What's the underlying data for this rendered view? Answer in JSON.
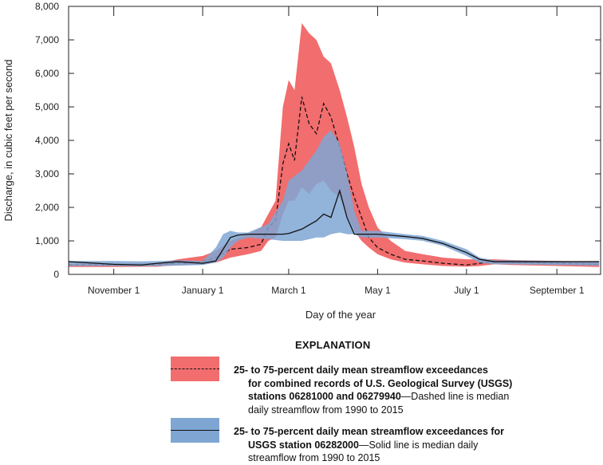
{
  "chart_data": {
    "type": "area",
    "xlabel": "Day of the year",
    "ylabel": "Discharge, in cubic feet per second",
    "ylim": [
      0,
      8000
    ],
    "xlim": [
      "10-01",
      "09-30"
    ],
    "yticks": [
      "0",
      "1,000",
      "2,000",
      "3,000",
      "4,000",
      "5,000",
      "6,000",
      "7,000",
      "8,000"
    ],
    "xticks": [
      {
        "date": "11-01",
        "label": "November 1"
      },
      {
        "date": "01-01",
        "label": "January 1"
      },
      {
        "date": "03-01",
        "label": "March 1"
      },
      {
        "date": "05-01",
        "label": "May 1"
      },
      {
        "date": "07-01",
        "label": "July 1"
      },
      {
        "date": "09-01",
        "label": "September 1"
      }
    ],
    "grid": false,
    "legend_title": "EXPLANATION",
    "series": [
      {
        "key": "combined",
        "color": "#f26d6e",
        "median_style": "dashed",
        "columns": [
          "date",
          "p25",
          "median",
          "p75"
        ],
        "points": [
          [
            "10-01",
            220,
            290,
            320
          ],
          [
            "11-01",
            220,
            280,
            320
          ],
          [
            "12-01",
            230,
            290,
            340
          ],
          [
            "12-15",
            280,
            330,
            450
          ],
          [
            "01-01",
            300,
            380,
            550
          ],
          [
            "01-10",
            350,
            500,
            700
          ],
          [
            "01-20",
            500,
            750,
            1000
          ],
          [
            "02-01",
            600,
            800,
            1200
          ],
          [
            "02-10",
            700,
            900,
            1400
          ],
          [
            "02-15",
            1000,
            1400,
            1800
          ],
          [
            "02-20",
            1100,
            1600,
            2200
          ],
          [
            "02-25",
            1800,
            3300,
            5000
          ],
          [
            "03-01",
            2200,
            3900,
            5800
          ],
          [
            "03-05",
            2200,
            3400,
            5500
          ],
          [
            "03-10",
            2600,
            5300,
            7500
          ],
          [
            "03-15",
            2400,
            4500,
            7200
          ],
          [
            "03-20",
            2700,
            4200,
            7000
          ],
          [
            "03-25",
            2800,
            5100,
            6500
          ],
          [
            "03-30",
            2500,
            4700,
            6300
          ],
          [
            "04-05",
            2300,
            3800,
            5500
          ],
          [
            "04-10",
            1800,
            3000,
            4700
          ],
          [
            "04-15",
            1300,
            2300,
            3800
          ],
          [
            "04-20",
            1000,
            1700,
            2700
          ],
          [
            "04-25",
            800,
            1100,
            2000
          ],
          [
            "05-01",
            600,
            800,
            1400
          ],
          [
            "05-10",
            450,
            600,
            1000
          ],
          [
            "05-20",
            350,
            450,
            700
          ],
          [
            "06-01",
            300,
            400,
            600
          ],
          [
            "06-15",
            250,
            330,
            500
          ],
          [
            "07-01",
            230,
            280,
            450
          ],
          [
            "07-10",
            250,
            330,
            450
          ],
          [
            "07-20",
            300,
            380,
            450
          ],
          [
            "08-01",
            280,
            370,
            430
          ],
          [
            "09-01",
            250,
            330,
            400
          ],
          [
            "09-30",
            220,
            300,
            350
          ]
        ]
      },
      {
        "key": "06282000",
        "color": "#7fa6d3",
        "median_style": "solid",
        "columns": [
          "date",
          "p25",
          "median",
          "p75"
        ],
        "points": [
          [
            "10-01",
            250,
            380,
            400
          ],
          [
            "11-01",
            250,
            300,
            400
          ],
          [
            "11-20",
            240,
            280,
            390
          ],
          [
            "12-01",
            250,
            330,
            400
          ],
          [
            "12-15",
            260,
            380,
            420
          ],
          [
            "01-01",
            280,
            330,
            400
          ],
          [
            "01-10",
            350,
            400,
            800
          ],
          [
            "01-15",
            500,
            750,
            1200
          ],
          [
            "01-20",
            800,
            1100,
            1300
          ],
          [
            "01-25",
            1000,
            1170,
            1250
          ],
          [
            "02-01",
            1100,
            1200,
            1250
          ],
          [
            "02-15",
            1050,
            1200,
            1500
          ],
          [
            "02-25",
            1000,
            1200,
            2200
          ],
          [
            "03-01",
            1000,
            1220,
            2800
          ],
          [
            "03-10",
            1000,
            1350,
            3100
          ],
          [
            "03-20",
            1100,
            1600,
            3700
          ],
          [
            "03-25",
            1100,
            1800,
            4100
          ],
          [
            "03-30",
            1200,
            1700,
            4300
          ],
          [
            "04-05",
            1250,
            2500,
            3900
          ],
          [
            "04-10",
            1200,
            1700,
            3000
          ],
          [
            "04-15",
            1200,
            1200,
            1900
          ],
          [
            "04-20",
            1100,
            1200,
            1300
          ],
          [
            "05-01",
            1100,
            1200,
            1300
          ],
          [
            "05-20",
            1050,
            1130,
            1200
          ],
          [
            "06-01",
            1000,
            1070,
            1150
          ],
          [
            "06-15",
            850,
            920,
            1000
          ],
          [
            "07-01",
            550,
            650,
            750
          ],
          [
            "07-10",
            350,
            450,
            500
          ],
          [
            "07-20",
            300,
            380,
            420
          ],
          [
            "08-01",
            300,
            380,
            420
          ],
          [
            "09-01",
            280,
            380,
            400
          ],
          [
            "09-30",
            260,
            380,
            380
          ]
        ]
      }
    ]
  },
  "legend": {
    "title": "EXPLANATION",
    "item1_bold_a": "25- to 75-percent daily mean streamflow exceedances",
    "item1_bold_b": "for combined records of U.S. Geological Survey (USGS)",
    "item1_bold_c": "stations 06281000 and 06279940",
    "item1_rest_c": "—Dashed line is median",
    "item1_rest_d": "daily streamflow from 1990 to 2015",
    "item2_bold_a": "25- to 75-percent daily mean streamflow exceedances for",
    "item2_bold_b": "USGS station 06282000",
    "item2_rest_b": "—Solid line is median daily",
    "item2_rest_c": "streamflow from 1990 to 2015"
  }
}
